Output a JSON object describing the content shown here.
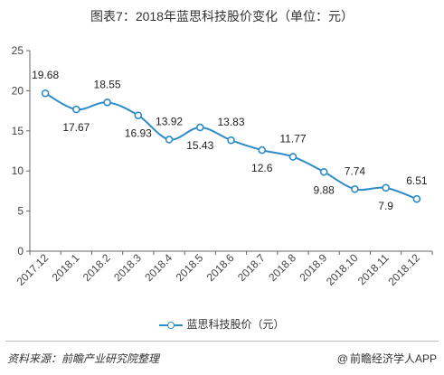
{
  "header": {
    "title": "图表7：2018年蓝思科技股价变化（单位：元）"
  },
  "chart_data": {
    "type": "line",
    "categories": [
      "2017.12",
      "2018.1",
      "2018.2",
      "2018.3",
      "2018.4",
      "2018.5",
      "2018.6",
      "2018.7",
      "2018.8",
      "2018.9",
      "2018.10",
      "2018.11",
      "2018.12"
    ],
    "series": [
      {
        "name": "蓝思科技股价（元）",
        "values": [
          19.68,
          17.67,
          18.55,
          16.93,
          13.92,
          15.43,
          13.83,
          12.6,
          11.77,
          9.88,
          7.74,
          7.9,
          6.51
        ]
      }
    ],
    "data_labels": [
      "19.68",
      "17.67",
      "18.55",
      "16.93",
      "13.92",
      "15.43",
      "13.83",
      "12.6",
      "11.77",
      "9.88",
      "7.74",
      "7.9",
      "6.51"
    ],
    "y_ticks": [
      "0",
      "5",
      "10",
      "15",
      "20",
      "25"
    ],
    "ylim": [
      0,
      25
    ],
    "grid": false,
    "legend_position": "bottom",
    "line_color": "#2e8bc9"
  },
  "footer": {
    "source": "资料来源：前瞻产业研究院整理",
    "brand_symbol": "@",
    "brand": "前瞻经济学人APP"
  }
}
